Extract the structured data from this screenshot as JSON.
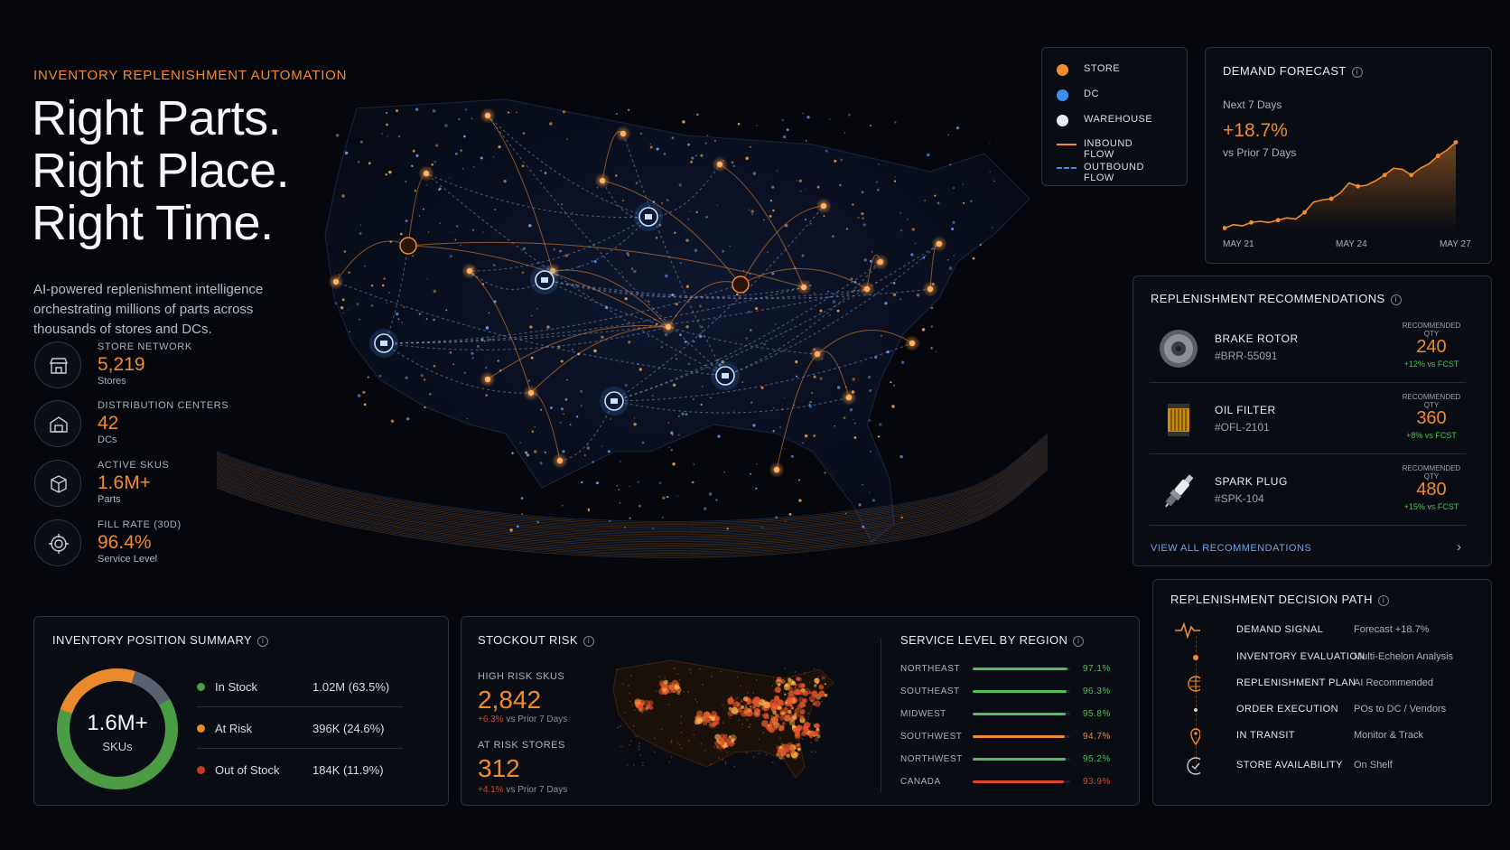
{
  "hero": {
    "eyebrow": "INVENTORY REPLENISHMENT AUTOMATION",
    "headline": [
      "Right Parts.",
      "Right Place.",
      "Right Time."
    ],
    "subtext": "AI-powered replenishment intelligence orchestrating millions of parts across thousands of stores and DCs."
  },
  "stats": [
    {
      "label": "STORE NETWORK",
      "value": "5,219",
      "sub": "Stores",
      "icon": "store-icon"
    },
    {
      "label": "DISTRIBUTION CENTERS",
      "value": "42",
      "sub": "DCs",
      "icon": "warehouse-icon"
    },
    {
      "label": "ACTIVE SKUS",
      "value": "1.6M+",
      "sub": "Parts",
      "icon": "box-icon"
    },
    {
      "label": "FILL RATE (30D)",
      "value": "96.4%",
      "sub": "Service Level",
      "icon": "target-icon"
    }
  ],
  "legend": {
    "items": [
      {
        "label": "STORE",
        "kind": "store"
      },
      {
        "label": "DC",
        "kind": "dc"
      },
      {
        "label": "WAREHOUSE",
        "kind": "warehouse"
      },
      {
        "label": "INBOUND FLOW",
        "kind": "inbound"
      },
      {
        "label": "OUTBOUND FLOW",
        "kind": "outbound"
      }
    ],
    "colors": {
      "store": "#f28a2e",
      "dc": "#3d8ef0",
      "warehouse": "#e8ebf1"
    }
  },
  "forecast": {
    "title": "DEMAND FORECAST",
    "period": "Next 7 Days",
    "change": "+18.7%",
    "compare": "vs Prior 7 Days",
    "x_labels": [
      "MAY 21",
      "MAY 24",
      "MAY 27"
    ]
  },
  "chart_data": {
    "type": "area",
    "values": [
      2,
      5,
      4,
      7,
      8,
      7,
      9,
      11,
      10,
      16,
      25,
      27,
      28,
      33,
      42,
      39,
      40,
      44,
      49,
      55,
      54,
      49,
      55,
      59,
      66,
      71,
      78
    ],
    "color": "#f28a2e"
  },
  "recommendations": {
    "title": "REPLENISHMENT RECOMMENDATIONS",
    "qty_label": "RECOMMENDED QTY",
    "items": [
      {
        "name": "BRAKE ROTOR",
        "sku": "#BRR-55091",
        "qty": "240",
        "delta": "+12% vs FCST"
      },
      {
        "name": "OIL FILTER",
        "sku": "#OFL-2101",
        "qty": "360",
        "delta": "+8% vs FCST"
      },
      {
        "name": "SPARK PLUG",
        "sku": "#SPK-104",
        "qty": "480",
        "delta": "+15% vs FCST"
      }
    ],
    "view_all": "VIEW ALL RECOMMENDATIONS"
  },
  "decision_path": {
    "title": "REPLENISHMENT DECISION PATH",
    "steps": [
      {
        "name": "DEMAND SIGNAL",
        "desc": "Forecast +18.7%",
        "icon": "pulse-icon"
      },
      {
        "name": "INVENTORY EVALUATION",
        "desc": "Multi-Echelon Analysis",
        "icon": "database-icon"
      },
      {
        "name": "REPLENISHMENT PLAN",
        "desc": "AI Recommended",
        "icon": "brain-icon"
      },
      {
        "name": "ORDER EXECUTION",
        "desc": "POs to DC / Vendors",
        "icon": "truck-icon"
      },
      {
        "name": "IN TRANSIT",
        "desc": "Monitor & Track",
        "icon": "location-pin-icon"
      },
      {
        "name": "STORE AVAILABILITY",
        "desc": "On Shelf",
        "icon": "store-icon"
      }
    ]
  },
  "inventory": {
    "title": "INVENTORY POSITION SUMMARY",
    "total": "1.6M+",
    "total_label": "SKUs",
    "items": [
      {
        "label": "In Stock",
        "value": "1.02M (63.5%)",
        "pct": 63.5,
        "color": "#4c9b45"
      },
      {
        "label": "At Risk",
        "value": "396K (24.6%)",
        "pct": 24.6,
        "color": "#e8892c"
      },
      {
        "label": "Out of Stock",
        "value": "184K (11.9%)",
        "pct": 11.9,
        "color": "#c23a2a"
      }
    ],
    "donut_colors": {
      "in_stock": "#4c9b45",
      "at_risk": "#e8892c",
      "out_of_stock": "#5a6170"
    }
  },
  "stockout": {
    "title": "STOCKOUT RISK",
    "high_label": "HIGH RISK SKUS",
    "high_value": "2,842",
    "high_delta": "+6.3%",
    "high_compare": "vs Prior 7 Days",
    "stores_label": "AT RISK STORES",
    "stores_value": "312",
    "stores_delta": "+4.1%",
    "stores_compare": "vs Prior 7 Days"
  },
  "service": {
    "title": "SERVICE LEVEL BY REGION",
    "regions": [
      {
        "name": "NORTHEAST",
        "value": "97.1%",
        "pct": 97.1,
        "color": "#4fbf5a"
      },
      {
        "name": "SOUTHEAST",
        "value": "96.3%",
        "pct": 96.3,
        "color": "#4fbf5a"
      },
      {
        "name": "MIDWEST",
        "value": "95.8%",
        "pct": 95.8,
        "color": "#4fbf5a"
      },
      {
        "name": "SOUTHWEST",
        "value": "94.7%",
        "pct": 94.7,
        "color": "#f28a2e"
      },
      {
        "name": "NORTHWEST",
        "value": "95.2%",
        "pct": 95.2,
        "color": "#4fbf5a"
      },
      {
        "name": "CANADA",
        "value": "93.9%",
        "pct": 93.9,
        "color": "#e0432d"
      }
    ]
  }
}
